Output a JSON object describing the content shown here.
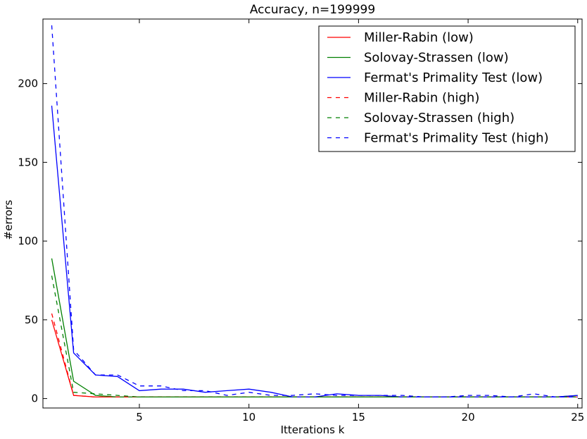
{
  "chart_data": {
    "type": "line",
    "title": "Accuracy, n=199999",
    "xlabel": "Itterations k",
    "ylabel": "#errors",
    "xlim": [
      0.6,
      25.2
    ],
    "ylim": [
      -6,
      241
    ],
    "xticks": [
      5,
      10,
      15,
      20,
      25
    ],
    "yticks": [
      0,
      50,
      100,
      150,
      200
    ],
    "grid": false,
    "legend_position": "top-right",
    "x": [
      1,
      2,
      3,
      4,
      5,
      6,
      7,
      8,
      9,
      10,
      11,
      12,
      13,
      14,
      15,
      16,
      17,
      18,
      19,
      20,
      21,
      22,
      23,
      24,
      25
    ],
    "series": [
      {
        "name": "Miller-Rabin (low)",
        "color": "#ff0000",
        "dash": "solid",
        "values": [
          50,
          2,
          1,
          1,
          1,
          1,
          1,
          1,
          1,
          1,
          1,
          1,
          1,
          1,
          1,
          1,
          1,
          1,
          1,
          1,
          1,
          1,
          1,
          1,
          1
        ]
      },
      {
        "name": "Solovay-Strassen (low)",
        "color": "#008000",
        "dash": "solid",
        "values": [
          89,
          11,
          2,
          1,
          1,
          1,
          1,
          1,
          1,
          1,
          1,
          1,
          1,
          1,
          1,
          1,
          1,
          1,
          1,
          1,
          1,
          1,
          1,
          1,
          2
        ]
      },
      {
        "name": "Fermat's Primality Test (low)",
        "color": "#0000ff",
        "dash": "solid",
        "values": [
          186,
          29,
          15,
          14,
          5,
          6,
          6,
          4,
          5,
          6,
          4,
          1,
          1,
          3,
          2,
          2,
          1,
          1,
          1,
          1,
          1,
          1,
          1,
          1,
          2
        ]
      },
      {
        "name": "Miller-Rabin (high)",
        "color": "#ff0000",
        "dash": "dashed",
        "values": [
          54,
          2,
          1,
          1,
          1,
          1,
          1,
          1,
          1,
          1,
          1,
          1,
          1,
          1,
          1,
          1,
          1,
          1,
          1,
          1,
          1,
          1,
          1,
          1,
          1
        ]
      },
      {
        "name": "Solovay-Strassen (high)",
        "color": "#008000",
        "dash": "dashed",
        "values": [
          78,
          4,
          3,
          2,
          1,
          1,
          1,
          1,
          1,
          1,
          1,
          1,
          1,
          1,
          1,
          1,
          1,
          1,
          1,
          1,
          1,
          1,
          1,
          1,
          1
        ]
      },
      {
        "name": "Fermat's Primality Test (high)",
        "color": "#0000ff",
        "dash": "dashed",
        "values": [
          237,
          31,
          15,
          15,
          8,
          8,
          5,
          5,
          2,
          4,
          2,
          2,
          3,
          2,
          2,
          2,
          2,
          1,
          1,
          2,
          2,
          1,
          3,
          1,
          1
        ]
      }
    ]
  }
}
